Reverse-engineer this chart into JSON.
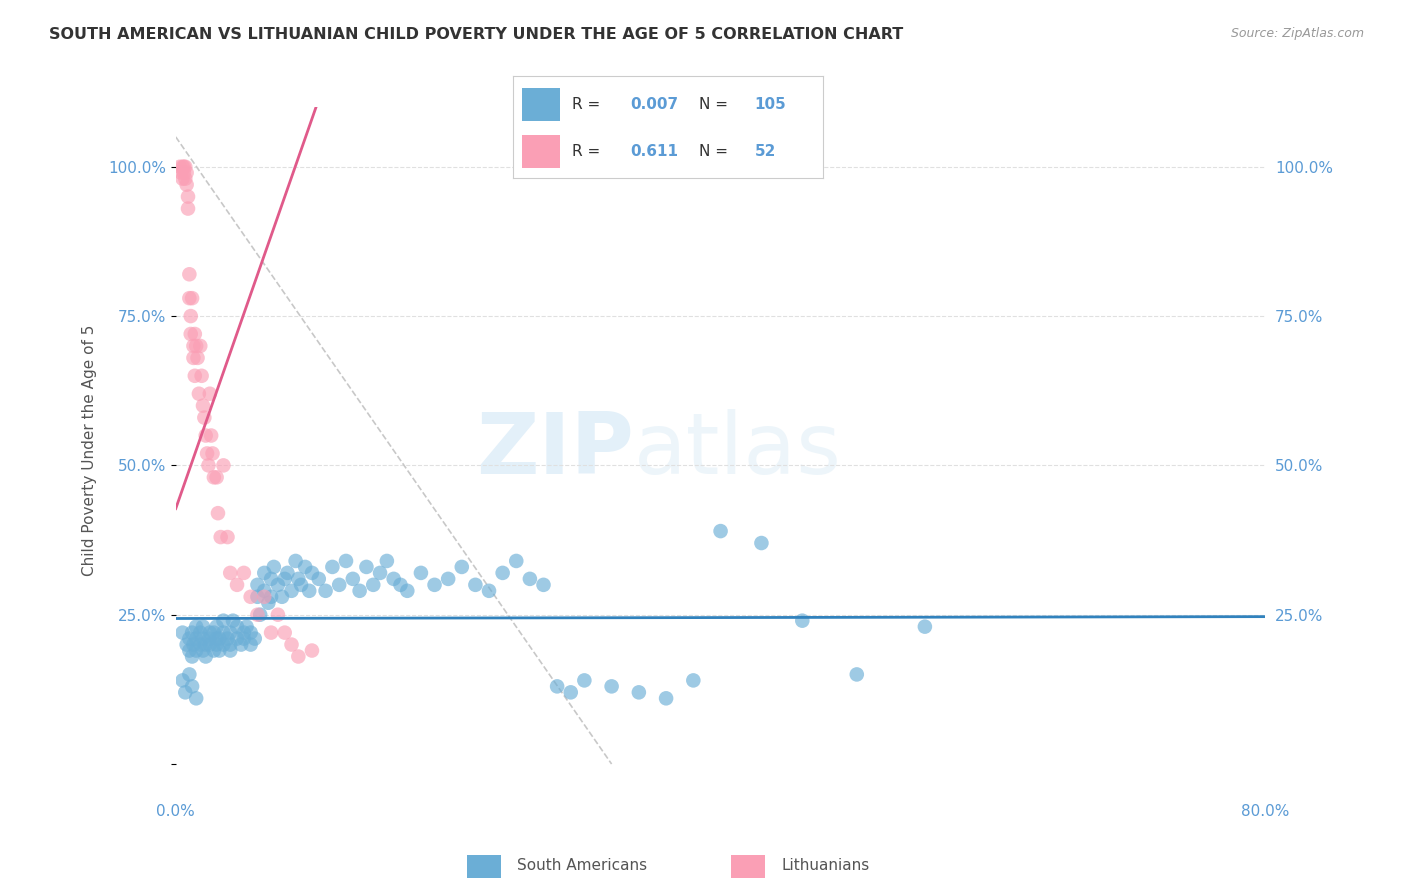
{
  "title": "SOUTH AMERICAN VS LITHUANIAN CHILD POVERTY UNDER THE AGE OF 5 CORRELATION CHART",
  "source": "Source: ZipAtlas.com",
  "ylabel": "Child Poverty Under the Age of 5",
  "xlim": [
    0.0,
    0.8
  ],
  "ylim": [
    -0.05,
    1.1
  ],
  "xticks": [
    0.0,
    0.1,
    0.2,
    0.3,
    0.4,
    0.5,
    0.6,
    0.7,
    0.8
  ],
  "xticklabels": [
    "0.0%",
    "",
    "",
    "",
    "",
    "",
    "",
    "",
    "80.0%"
  ],
  "yticks": [
    0.0,
    0.25,
    0.5,
    0.75,
    1.0
  ],
  "yticklabels": [
    "",
    "25.0%",
    "50.0%",
    "75.0%",
    "100.0%"
  ],
  "blue_R": "0.007",
  "blue_N": "105",
  "pink_R": "0.611",
  "pink_N": "52",
  "blue_color": "#6baed6",
  "pink_color": "#fa9fb5",
  "blue_line_color": "#3182bd",
  "pink_line_color": "#e05a8a",
  "ref_line_color": "#c8c8c8",
  "legend_label_blue": "South Americans",
  "legend_label_pink": "Lithuanians",
  "watermark_zip": "ZIP",
  "watermark_atlas": "atlas",
  "blue_scatter_x": [
    0.005,
    0.008,
    0.01,
    0.01,
    0.012,
    0.012,
    0.013,
    0.015,
    0.015,
    0.015,
    0.018,
    0.018,
    0.02,
    0.02,
    0.02,
    0.022,
    0.022,
    0.025,
    0.025,
    0.025,
    0.028,
    0.028,
    0.03,
    0.03,
    0.03,
    0.032,
    0.032,
    0.035,
    0.035,
    0.035,
    0.038,
    0.04,
    0.04,
    0.04,
    0.042,
    0.045,
    0.045,
    0.048,
    0.05,
    0.05,
    0.052,
    0.055,
    0.055,
    0.058,
    0.06,
    0.06,
    0.062,
    0.065,
    0.065,
    0.068,
    0.07,
    0.07,
    0.072,
    0.075,
    0.078,
    0.08,
    0.082,
    0.085,
    0.088,
    0.09,
    0.092,
    0.095,
    0.098,
    0.1,
    0.105,
    0.11,
    0.115,
    0.12,
    0.125,
    0.13,
    0.135,
    0.14,
    0.145,
    0.15,
    0.155,
    0.16,
    0.165,
    0.17,
    0.18,
    0.19,
    0.2,
    0.21,
    0.22,
    0.23,
    0.24,
    0.25,
    0.26,
    0.27,
    0.28,
    0.29,
    0.3,
    0.32,
    0.34,
    0.36,
    0.38,
    0.4,
    0.43,
    0.46,
    0.5,
    0.55,
    0.005,
    0.007,
    0.01,
    0.012,
    0.015
  ],
  "blue_scatter_y": [
    0.22,
    0.2,
    0.21,
    0.19,
    0.22,
    0.18,
    0.2,
    0.23,
    0.19,
    0.21,
    0.2,
    0.22,
    0.21,
    0.19,
    0.23,
    0.2,
    0.18,
    0.22,
    0.2,
    0.21,
    0.19,
    0.22,
    0.21,
    0.2,
    0.23,
    0.19,
    0.21,
    0.22,
    0.2,
    0.24,
    0.21,
    0.2,
    0.22,
    0.19,
    0.24,
    0.21,
    0.23,
    0.2,
    0.22,
    0.21,
    0.23,
    0.2,
    0.22,
    0.21,
    0.3,
    0.28,
    0.25,
    0.32,
    0.29,
    0.27,
    0.31,
    0.28,
    0.33,
    0.3,
    0.28,
    0.31,
    0.32,
    0.29,
    0.34,
    0.31,
    0.3,
    0.33,
    0.29,
    0.32,
    0.31,
    0.29,
    0.33,
    0.3,
    0.34,
    0.31,
    0.29,
    0.33,
    0.3,
    0.32,
    0.34,
    0.31,
    0.3,
    0.29,
    0.32,
    0.3,
    0.31,
    0.33,
    0.3,
    0.29,
    0.32,
    0.34,
    0.31,
    0.3,
    0.13,
    0.12,
    0.14,
    0.13,
    0.12,
    0.11,
    0.14,
    0.39,
    0.37,
    0.24,
    0.15,
    0.23,
    0.14,
    0.12,
    0.15,
    0.13,
    0.11
  ],
  "pink_scatter_x": [
    0.003,
    0.004,
    0.005,
    0.005,
    0.006,
    0.006,
    0.007,
    0.007,
    0.008,
    0.008,
    0.009,
    0.009,
    0.01,
    0.01,
    0.011,
    0.011,
    0.012,
    0.013,
    0.013,
    0.014,
    0.014,
    0.015,
    0.016,
    0.017,
    0.018,
    0.019,
    0.02,
    0.021,
    0.022,
    0.023,
    0.024,
    0.025,
    0.026,
    0.027,
    0.028,
    0.03,
    0.031,
    0.033,
    0.035,
    0.038,
    0.04,
    0.045,
    0.05,
    0.055,
    0.06,
    0.065,
    0.07,
    0.075,
    0.08,
    0.085,
    0.09,
    0.1
  ],
  "pink_scatter_y": [
    1.0,
    0.99,
    1.0,
    0.98,
    1.0,
    0.99,
    1.0,
    0.98,
    0.99,
    0.97,
    0.95,
    0.93,
    0.82,
    0.78,
    0.75,
    0.72,
    0.78,
    0.7,
    0.68,
    0.72,
    0.65,
    0.7,
    0.68,
    0.62,
    0.7,
    0.65,
    0.6,
    0.58,
    0.55,
    0.52,
    0.5,
    0.62,
    0.55,
    0.52,
    0.48,
    0.48,
    0.42,
    0.38,
    0.5,
    0.38,
    0.32,
    0.3,
    0.32,
    0.28,
    0.25,
    0.28,
    0.22,
    0.25,
    0.22,
    0.2,
    0.18,
    0.19
  ]
}
